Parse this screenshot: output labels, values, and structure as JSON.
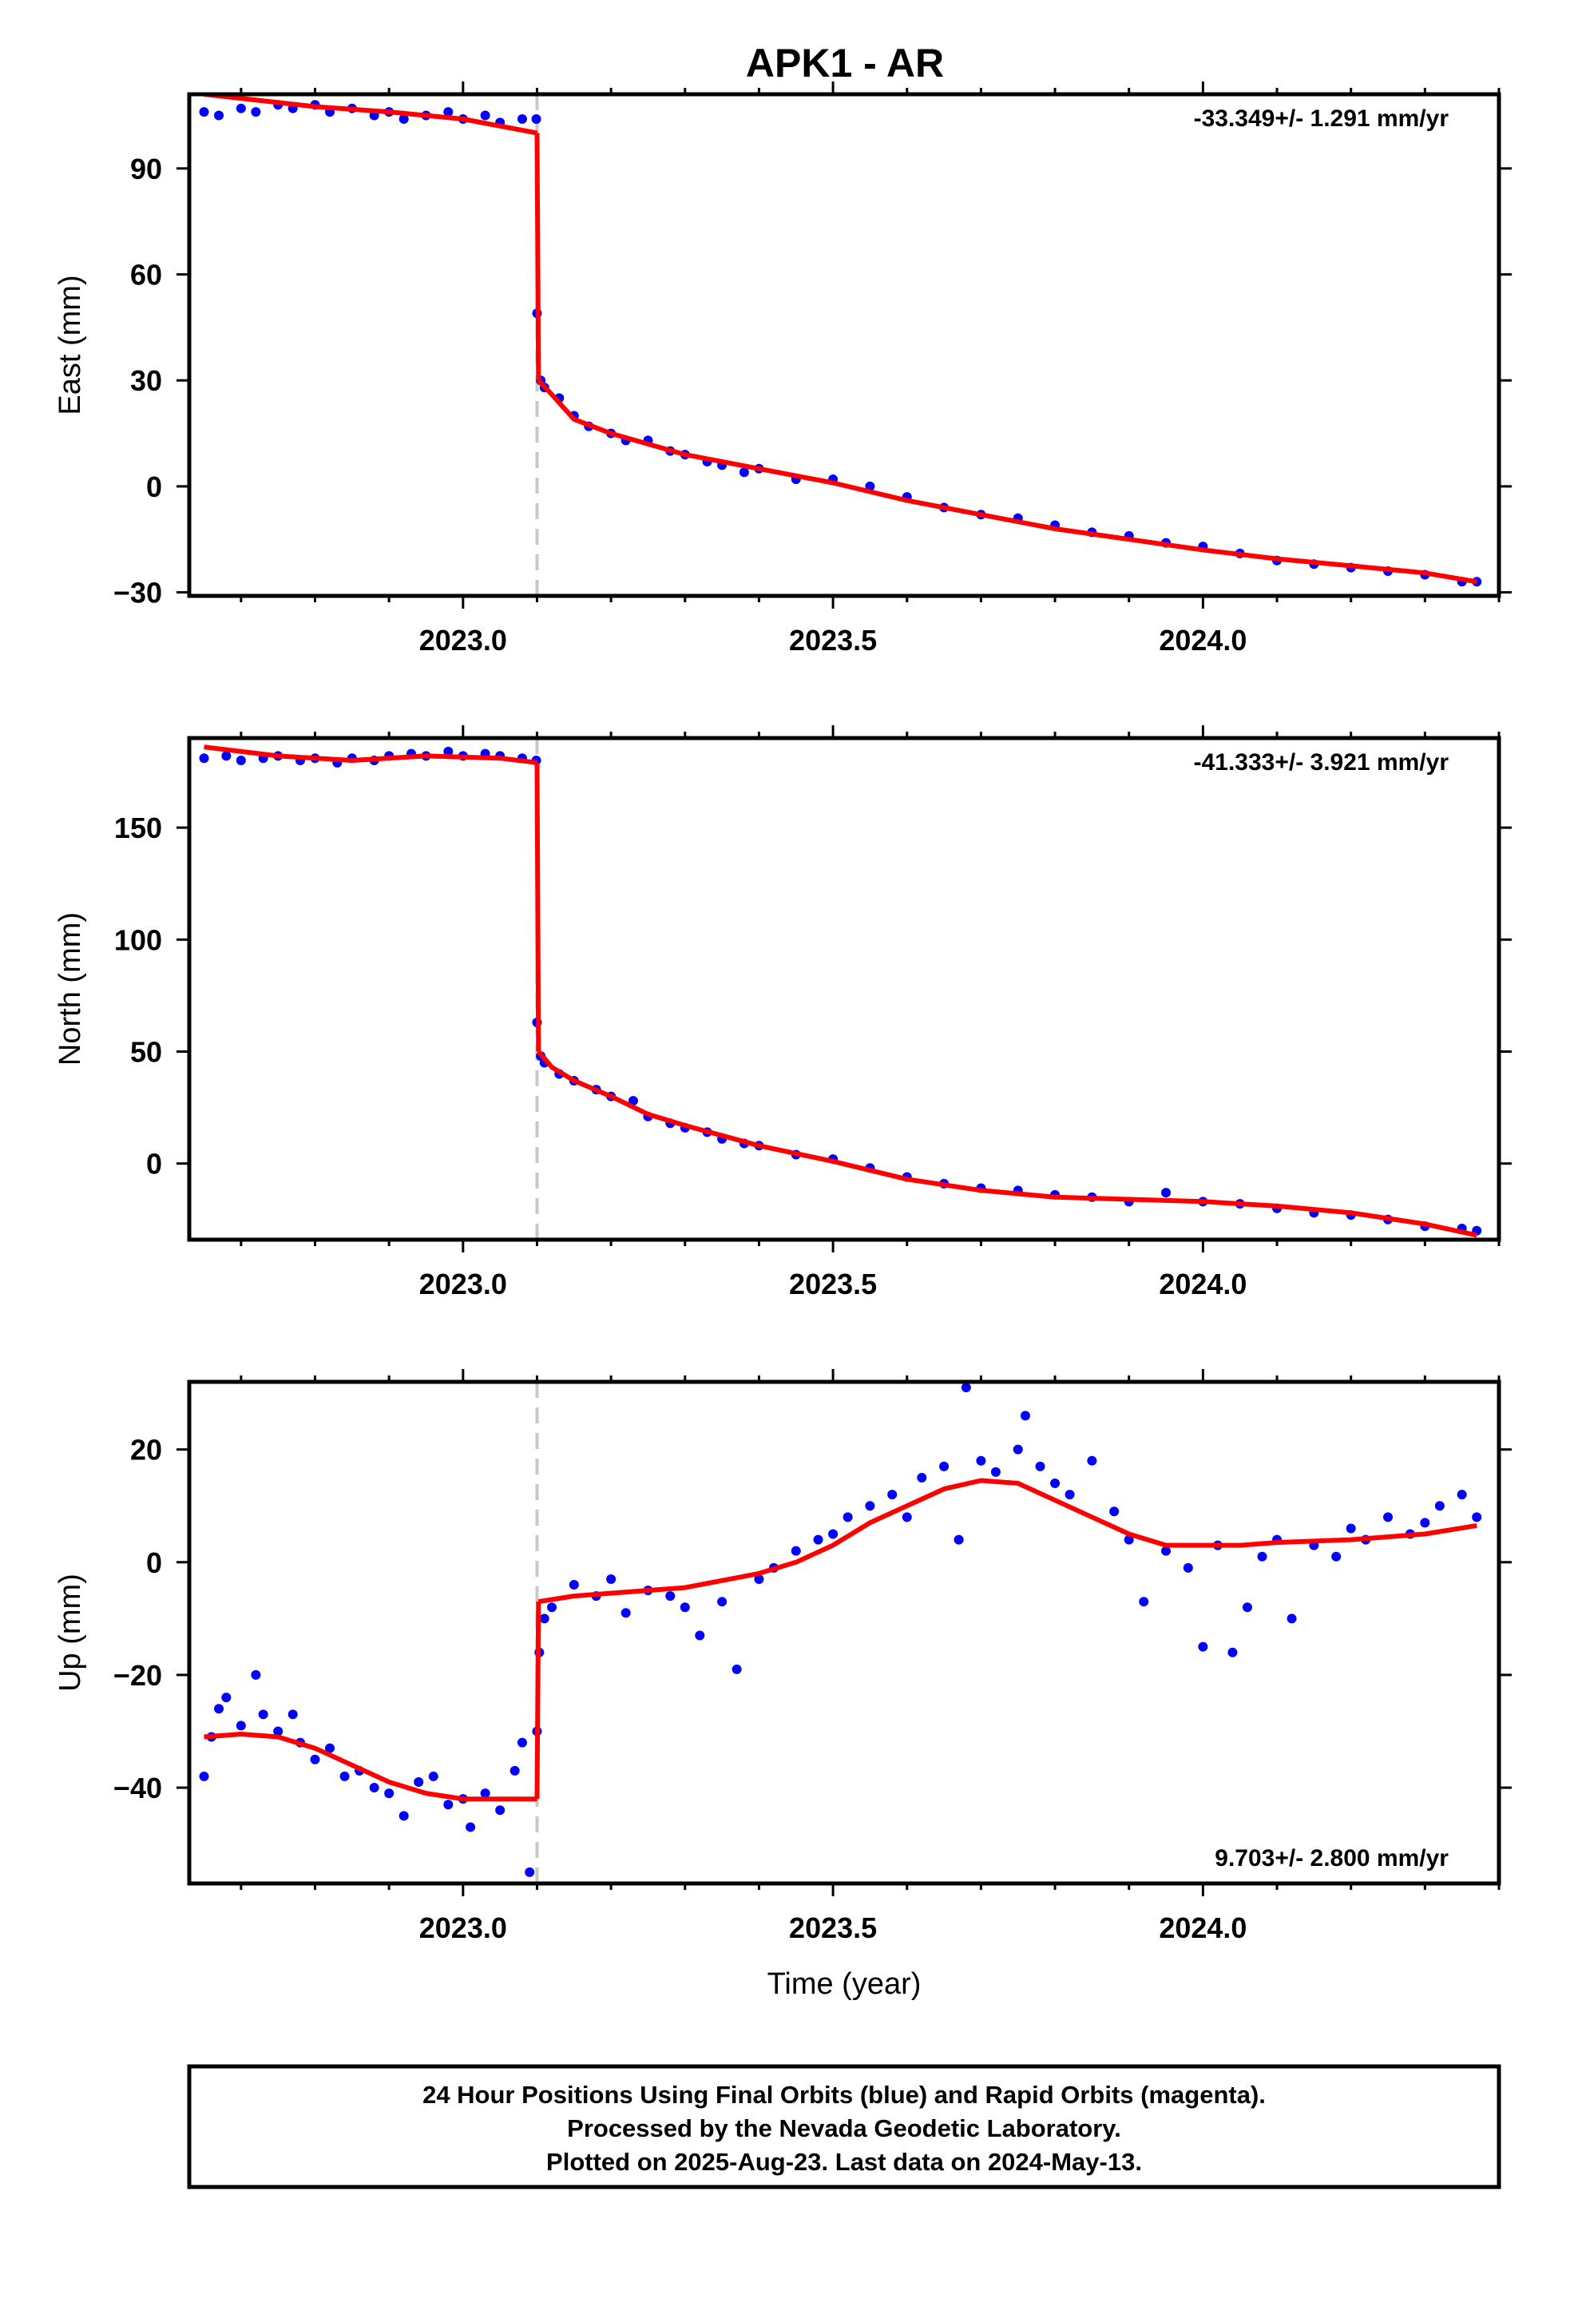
{
  "colors": {
    "data_points": "#0000ff",
    "model_fit": "#ff0000",
    "event_marker": "#c8c8c8",
    "frame": "#000000"
  },
  "chart_data": {
    "type": "scatter",
    "title": "APK1 - AR",
    "xlabel": "Time (year)",
    "xlim": [
      2022.63,
      2024.4
    ],
    "xticks": [
      2023.0,
      2023.5,
      2024.0
    ],
    "xtick_labels": [
      "2023.0",
      "2023.5",
      "2024.0"
    ],
    "event_x": 2023.1,
    "panels": [
      {
        "id": "east",
        "ylabel": "East (mm)",
        "ylim": [
          -31,
          111
        ],
        "yticks": [
          -30,
          0,
          30,
          60,
          90
        ],
        "ytick_labels": [
          "−30",
          "0",
          "30",
          "60",
          "90"
        ],
        "rate_label": "-33.349+/- 1.291 mm/yr",
        "rate_position": "top-right",
        "show_xtick_labels": true,
        "show_xlabel": false,
        "fit_segments": [
          [
            [
              2022.65,
              111
            ],
            [
              2022.8,
              107.5
            ],
            [
              2022.9,
              106
            ],
            [
              2023.0,
              104
            ],
            [
              2023.1,
              100
            ]
          ],
          [
            [
              2023.1,
              100
            ],
            [
              2023.102,
              30
            ]
          ],
          [
            [
              2023.102,
              30
            ],
            [
              2023.12,
              26
            ],
            [
              2023.15,
              19
            ],
            [
              2023.2,
              15
            ],
            [
              2023.3,
              9
            ],
            [
              2023.4,
              5
            ],
            [
              2023.5,
              1
            ],
            [
              2023.6,
              -4
            ],
            [
              2023.7,
              -8
            ],
            [
              2023.8,
              -12
            ],
            [
              2023.9,
              -15
            ],
            [
              2024.0,
              -18
            ],
            [
              2024.1,
              -20.5
            ],
            [
              2024.2,
              -22.5
            ],
            [
              2024.3,
              -24.5
            ],
            [
              2024.37,
              -27
            ]
          ]
        ],
        "points": [
          [
            2022.65,
            106
          ],
          [
            2022.67,
            105
          ],
          [
            2022.7,
            107
          ],
          [
            2022.72,
            106
          ],
          [
            2022.75,
            108
          ],
          [
            2022.77,
            107
          ],
          [
            2022.8,
            108
          ],
          [
            2022.82,
            106
          ],
          [
            2022.85,
            107
          ],
          [
            2022.88,
            105
          ],
          [
            2022.9,
            106
          ],
          [
            2022.92,
            104
          ],
          [
            2022.95,
            105
          ],
          [
            2022.98,
            106
          ],
          [
            2023.0,
            104
          ],
          [
            2023.03,
            105
          ],
          [
            2023.05,
            103
          ],
          [
            2023.08,
            104
          ],
          [
            2023.099,
            104
          ],
          [
            2023.1,
            49
          ],
          [
            2023.105,
            30
          ],
          [
            2023.11,
            28
          ],
          [
            2023.13,
            25
          ],
          [
            2023.15,
            20
          ],
          [
            2023.17,
            17
          ],
          [
            2023.2,
            15
          ],
          [
            2023.22,
            13
          ],
          [
            2023.25,
            13
          ],
          [
            2023.28,
            10
          ],
          [
            2023.3,
            9
          ],
          [
            2023.33,
            7
          ],
          [
            2023.35,
            6
          ],
          [
            2023.38,
            4
          ],
          [
            2023.4,
            5
          ],
          [
            2023.45,
            2
          ],
          [
            2023.5,
            2
          ],
          [
            2023.55,
            0
          ],
          [
            2023.6,
            -3
          ],
          [
            2023.65,
            -6
          ],
          [
            2023.7,
            -8
          ],
          [
            2023.75,
            -9
          ],
          [
            2023.8,
            -11
          ],
          [
            2023.85,
            -13
          ],
          [
            2023.9,
            -14
          ],
          [
            2023.95,
            -16
          ],
          [
            2024.0,
            -17
          ],
          [
            2024.05,
            -19
          ],
          [
            2024.1,
            -21
          ],
          [
            2024.15,
            -22
          ],
          [
            2024.2,
            -23
          ],
          [
            2024.25,
            -24
          ],
          [
            2024.3,
            -25
          ],
          [
            2024.35,
            -27
          ],
          [
            2024.37,
            -27
          ]
        ]
      },
      {
        "id": "north",
        "ylabel": "North (mm)",
        "ylim": [
          -34,
          190
        ],
        "yticks": [
          0,
          50,
          100,
          150
        ],
        "ytick_labels": [
          "0",
          "50",
          "100",
          "150"
        ],
        "rate_label": "-41.333+/- 3.921 mm/yr",
        "rate_position": "top-right",
        "show_xtick_labels": true,
        "show_xlabel": false,
        "fit_segments": [
          [
            [
              2022.65,
              186
            ],
            [
              2022.75,
              182
            ],
            [
              2022.85,
              180
            ],
            [
              2022.95,
              182
            ],
            [
              2023.05,
              181
            ],
            [
              2023.1,
              179
            ]
          ],
          [
            [
              2023.1,
              179
            ],
            [
              2023.102,
              50
            ]
          ],
          [
            [
              2023.102,
              50
            ],
            [
              2023.12,
              43
            ],
            [
              2023.15,
              37
            ],
            [
              2023.2,
              30
            ],
            [
              2023.25,
              22
            ],
            [
              2023.3,
              17
            ],
            [
              2023.4,
              8
            ],
            [
              2023.5,
              1
            ],
            [
              2023.6,
              -7
            ],
            [
              2023.7,
              -12
            ],
            [
              2023.8,
              -15
            ],
            [
              2023.9,
              -16
            ],
            [
              2024.0,
              -17
            ],
            [
              2024.1,
              -19
            ],
            [
              2024.2,
              -22
            ],
            [
              2024.3,
              -27
            ],
            [
              2024.37,
              -32
            ]
          ]
        ],
        "points": [
          [
            2022.65,
            181
          ],
          [
            2022.68,
            182
          ],
          [
            2022.7,
            180
          ],
          [
            2022.73,
            181
          ],
          [
            2022.75,
            182
          ],
          [
            2022.78,
            180
          ],
          [
            2022.8,
            181
          ],
          [
            2022.83,
            179
          ],
          [
            2022.85,
            181
          ],
          [
            2022.88,
            180
          ],
          [
            2022.9,
            182
          ],
          [
            2022.93,
            183
          ],
          [
            2022.95,
            182
          ],
          [
            2022.98,
            184
          ],
          [
            2023.0,
            182
          ],
          [
            2023.03,
            183
          ],
          [
            2023.05,
            182
          ],
          [
            2023.08,
            181
          ],
          [
            2023.099,
            180
          ],
          [
            2023.1,
            63
          ],
          [
            2023.105,
            48
          ],
          [
            2023.11,
            45
          ],
          [
            2023.13,
            40
          ],
          [
            2023.15,
            37
          ],
          [
            2023.18,
            33
          ],
          [
            2023.2,
            30
          ],
          [
            2023.23,
            28
          ],
          [
            2023.25,
            21
          ],
          [
            2023.28,
            18
          ],
          [
            2023.3,
            16
          ],
          [
            2023.33,
            14
          ],
          [
            2023.35,
            11
          ],
          [
            2023.38,
            9
          ],
          [
            2023.4,
            8
          ],
          [
            2023.45,
            4
          ],
          [
            2023.5,
            2
          ],
          [
            2023.55,
            -2
          ],
          [
            2023.6,
            -6
          ],
          [
            2023.65,
            -9
          ],
          [
            2023.7,
            -11
          ],
          [
            2023.75,
            -12
          ],
          [
            2023.8,
            -14
          ],
          [
            2023.85,
            -15
          ],
          [
            2023.9,
            -17
          ],
          [
            2023.95,
            -13
          ],
          [
            2024.0,
            -17
          ],
          [
            2024.05,
            -18
          ],
          [
            2024.1,
            -20
          ],
          [
            2024.15,
            -22
          ],
          [
            2024.2,
            -23
          ],
          [
            2024.25,
            -25
          ],
          [
            2024.3,
            -28
          ],
          [
            2024.35,
            -29
          ],
          [
            2024.37,
            -30
          ]
        ]
      },
      {
        "id": "up",
        "ylabel": "Up (mm)",
        "ylim": [
          -57,
          32
        ],
        "yticks": [
          -40,
          -20,
          0,
          20
        ],
        "ytick_labels": [
          "−40",
          "−20",
          "0",
          "20"
        ],
        "rate_label": "9.703+/- 2.800 mm/yr",
        "rate_position": "bottom-right",
        "show_xtick_labels": true,
        "show_xlabel": true,
        "fit_segments": [
          [
            [
              2022.65,
              -31
            ],
            [
              2022.7,
              -30.5
            ],
            [
              2022.75,
              -31
            ],
            [
              2022.8,
              -33
            ],
            [
              2022.85,
              -36
            ],
            [
              2022.9,
              -39
            ],
            [
              2022.95,
              -41
            ],
            [
              2023.0,
              -42
            ],
            [
              2023.05,
              -42
            ],
            [
              2023.1,
              -42
            ]
          ],
          [
            [
              2023.1,
              -42
            ],
            [
              2023.102,
              -7
            ]
          ],
          [
            [
              2023.102,
              -7
            ],
            [
              2023.15,
              -6
            ],
            [
              2023.2,
              -5.5
            ],
            [
              2023.3,
              -4.5
            ],
            [
              2023.4,
              -2
            ],
            [
              2023.45,
              0
            ],
            [
              2023.5,
              3
            ],
            [
              2023.55,
              7
            ],
            [
              2023.6,
              10
            ],
            [
              2023.65,
              13
            ],
            [
              2023.7,
              14.5
            ],
            [
              2023.75,
              14
            ],
            [
              2023.8,
              11
            ],
            [
              2023.85,
              8
            ],
            [
              2023.9,
              5
            ],
            [
              2023.95,
              3
            ],
            [
              2024.0,
              3
            ],
            [
              2024.05,
              3
            ],
            [
              2024.1,
              3.5
            ],
            [
              2024.2,
              4
            ],
            [
              2024.3,
              5
            ],
            [
              2024.37,
              6.5
            ]
          ]
        ],
        "points": [
          [
            2022.65,
            -38
          ],
          [
            2022.66,
            -31
          ],
          [
            2022.67,
            -26
          ],
          [
            2022.68,
            -24
          ],
          [
            2022.7,
            -29
          ],
          [
            2022.72,
            -20
          ],
          [
            2022.73,
            -27
          ],
          [
            2022.75,
            -30
          ],
          [
            2022.77,
            -27
          ],
          [
            2022.78,
            -32
          ],
          [
            2022.8,
            -35
          ],
          [
            2022.82,
            -33
          ],
          [
            2022.84,
            -38
          ],
          [
            2022.86,
            -37
          ],
          [
            2022.88,
            -40
          ],
          [
            2022.9,
            -41
          ],
          [
            2022.92,
            -45
          ],
          [
            2022.94,
            -39
          ],
          [
            2022.96,
            -38
          ],
          [
            2022.98,
            -43
          ],
          [
            2023.0,
            -42
          ],
          [
            2023.01,
            -47
          ],
          [
            2023.03,
            -41
          ],
          [
            2023.05,
            -44
          ],
          [
            2023.07,
            -37
          ],
          [
            2023.08,
            -32
          ],
          [
            2023.09,
            -55
          ],
          [
            2023.1,
            -30
          ],
          [
            2023.103,
            -16
          ],
          [
            2023.11,
            -10
          ],
          [
            2023.12,
            -8
          ],
          [
            2023.15,
            -4
          ],
          [
            2023.18,
            -6
          ],
          [
            2023.2,
            -3
          ],
          [
            2023.22,
            -9
          ],
          [
            2023.25,
            -5
          ],
          [
            2023.28,
            -6
          ],
          [
            2023.3,
            -8
          ],
          [
            2023.32,
            -13
          ],
          [
            2023.35,
            -7
          ],
          [
            2023.37,
            -19
          ],
          [
            2023.4,
            -3
          ],
          [
            2023.42,
            -1
          ],
          [
            2023.45,
            2
          ],
          [
            2023.48,
            4
          ],
          [
            2023.5,
            5
          ],
          [
            2023.52,
            8
          ],
          [
            2023.55,
            10
          ],
          [
            2023.58,
            12
          ],
          [
            2023.6,
            8
          ],
          [
            2023.62,
            15
          ],
          [
            2023.65,
            17
          ],
          [
            2023.67,
            4
          ],
          [
            2023.68,
            31
          ],
          [
            2023.7,
            18
          ],
          [
            2023.72,
            16
          ],
          [
            2023.75,
            20
          ],
          [
            2023.76,
            26
          ],
          [
            2023.78,
            17
          ],
          [
            2023.8,
            14
          ],
          [
            2023.82,
            12
          ],
          [
            2023.85,
            18
          ],
          [
            2023.88,
            9
          ],
          [
            2023.9,
            4
          ],
          [
            2023.92,
            -7
          ],
          [
            2023.95,
            2
          ],
          [
            2023.98,
            -1
          ],
          [
            2024.0,
            -15
          ],
          [
            2024.02,
            3
          ],
          [
            2024.04,
            -16
          ],
          [
            2024.06,
            -8
          ],
          [
            2024.08,
            1
          ],
          [
            2024.1,
            4
          ],
          [
            2024.12,
            -10
          ],
          [
            2024.15,
            3
          ],
          [
            2024.18,
            1
          ],
          [
            2024.2,
            6
          ],
          [
            2024.22,
            4
          ],
          [
            2024.25,
            8
          ],
          [
            2024.28,
            5
          ],
          [
            2024.3,
            7
          ],
          [
            2024.32,
            10
          ],
          [
            2024.35,
            12
          ],
          [
            2024.37,
            8
          ]
        ]
      }
    ]
  },
  "footer": {
    "line1": "24 Hour Positions Using Final Orbits (blue) and Rapid Orbits (magenta).",
    "line2": "Processed by the Nevada Geodetic Laboratory.",
    "line3": "Plotted on 2025-Aug-23. Last data on 2024-May-13."
  }
}
